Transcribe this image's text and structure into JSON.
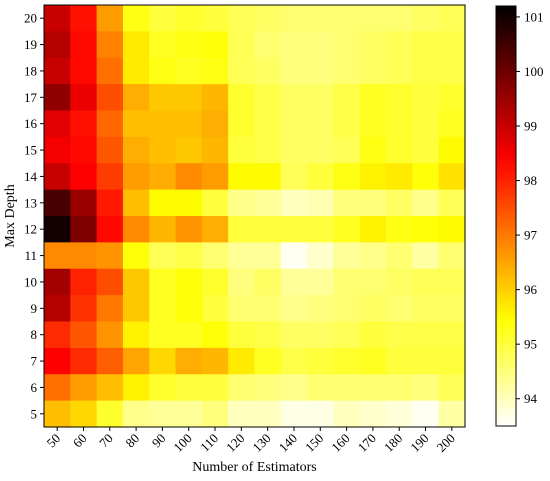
{
  "chart_data": {
    "type": "heatmap",
    "title": "",
    "xlabel": "Number of Estimators",
    "ylabel": "Max Depth",
    "x": [
      50,
      60,
      70,
      80,
      90,
      100,
      110,
      120,
      130,
      140,
      150,
      160,
      170,
      180,
      190,
      200
    ],
    "y": [
      20,
      19,
      18,
      17,
      16,
      15,
      14,
      13,
      12,
      11,
      10,
      9,
      8,
      7,
      6,
      5
    ],
    "values": [
      [
        99.0,
        98.2,
        96.6,
        95.3,
        95.0,
        95.1,
        95.0,
        94.8,
        94.7,
        94.6,
        94.6,
        94.6,
        94.6,
        94.6,
        94.7,
        94.8
      ],
      [
        99.2,
        98.3,
        96.9,
        95.7,
        95.2,
        95.3,
        95.4,
        94.8,
        94.6,
        94.5,
        94.5,
        94.6,
        94.7,
        94.8,
        94.9,
        94.9
      ],
      [
        99.0,
        98.3,
        97.1,
        95.7,
        95.3,
        95.2,
        95.3,
        94.8,
        94.7,
        94.5,
        94.5,
        94.6,
        94.7,
        94.8,
        94.9,
        94.9
      ],
      [
        99.6,
        98.6,
        97.5,
        96.4,
        96.1,
        96.1,
        96.3,
        95.1,
        94.9,
        94.7,
        94.7,
        94.9,
        95.2,
        95.1,
        95.0,
        95.1
      ],
      [
        98.7,
        98.2,
        97.2,
        96.2,
        96.2,
        96.2,
        96.4,
        95.1,
        94.9,
        94.7,
        94.7,
        94.9,
        95.2,
        95.1,
        95.0,
        95.2
      ],
      [
        98.5,
        98.3,
        97.4,
        96.4,
        96.2,
        96.1,
        96.3,
        95.0,
        94.9,
        94.7,
        94.7,
        94.8,
        95.3,
        95.1,
        95.0,
        95.5
      ],
      [
        99.0,
        98.4,
        97.7,
        96.6,
        96.4,
        96.8,
        96.6,
        95.5,
        95.5,
        94.8,
        95.0,
        95.3,
        95.6,
        95.7,
        95.4,
        95.8
      ],
      [
        100.4,
        99.5,
        98.1,
        96.2,
        95.5,
        95.5,
        95.0,
        94.4,
        94.3,
        94.0,
        94.1,
        94.5,
        94.5,
        94.7,
        94.4,
        94.8
      ],
      [
        101.0,
        99.8,
        98.3,
        96.8,
        96.3,
        96.7,
        96.4,
        95.0,
        95.0,
        95.0,
        95.0,
        95.2,
        95.6,
        95.3,
        95.4,
        95.5
      ],
      [
        96.8,
        96.8,
        96.7,
        95.4,
        94.8,
        94.9,
        94.6,
        94.3,
        94.3,
        93.6,
        93.9,
        94.3,
        94.4,
        94.6,
        94.2,
        94.6
      ],
      [
        99.4,
        98.0,
        97.5,
        96.1,
        95.2,
        95.4,
        95.1,
        94.5,
        94.7,
        94.3,
        94.3,
        94.6,
        94.6,
        94.7,
        94.8,
        94.8
      ],
      [
        99.2,
        97.8,
        97.0,
        96.1,
        95.2,
        95.4,
        95.0,
        94.6,
        94.6,
        94.4,
        94.5,
        94.6,
        94.7,
        94.6,
        94.7,
        94.7
      ],
      [
        97.9,
        97.4,
        96.7,
        95.6,
        95.2,
        95.2,
        95.4,
        95.0,
        94.9,
        94.7,
        94.7,
        94.8,
        95.0,
        94.9,
        94.9,
        94.9
      ],
      [
        98.4,
        97.9,
        97.3,
        96.5,
        95.9,
        96.4,
        96.3,
        95.7,
        95.2,
        94.9,
        95.0,
        95.1,
        95.2,
        95.0,
        95.0,
        95.0
      ],
      [
        97.1,
        96.6,
        96.2,
        95.6,
        95.1,
        95.0,
        95.0,
        94.6,
        94.5,
        94.4,
        94.6,
        94.6,
        94.6,
        94.6,
        94.5,
        94.8
      ],
      [
        96.2,
        95.9,
        95.1,
        94.4,
        94.3,
        94.3,
        94.5,
        94.0,
        94.0,
        93.7,
        93.7,
        94.0,
        93.9,
        93.8,
        93.6,
        94.2
      ]
    ],
    "colorbar": {
      "colormap": "hot_r",
      "min": 93.5,
      "max": 101.2,
      "ticks": [
        94,
        95,
        96,
        97,
        98,
        99,
        100,
        101
      ]
    },
    "grid": false,
    "legend": "none"
  }
}
